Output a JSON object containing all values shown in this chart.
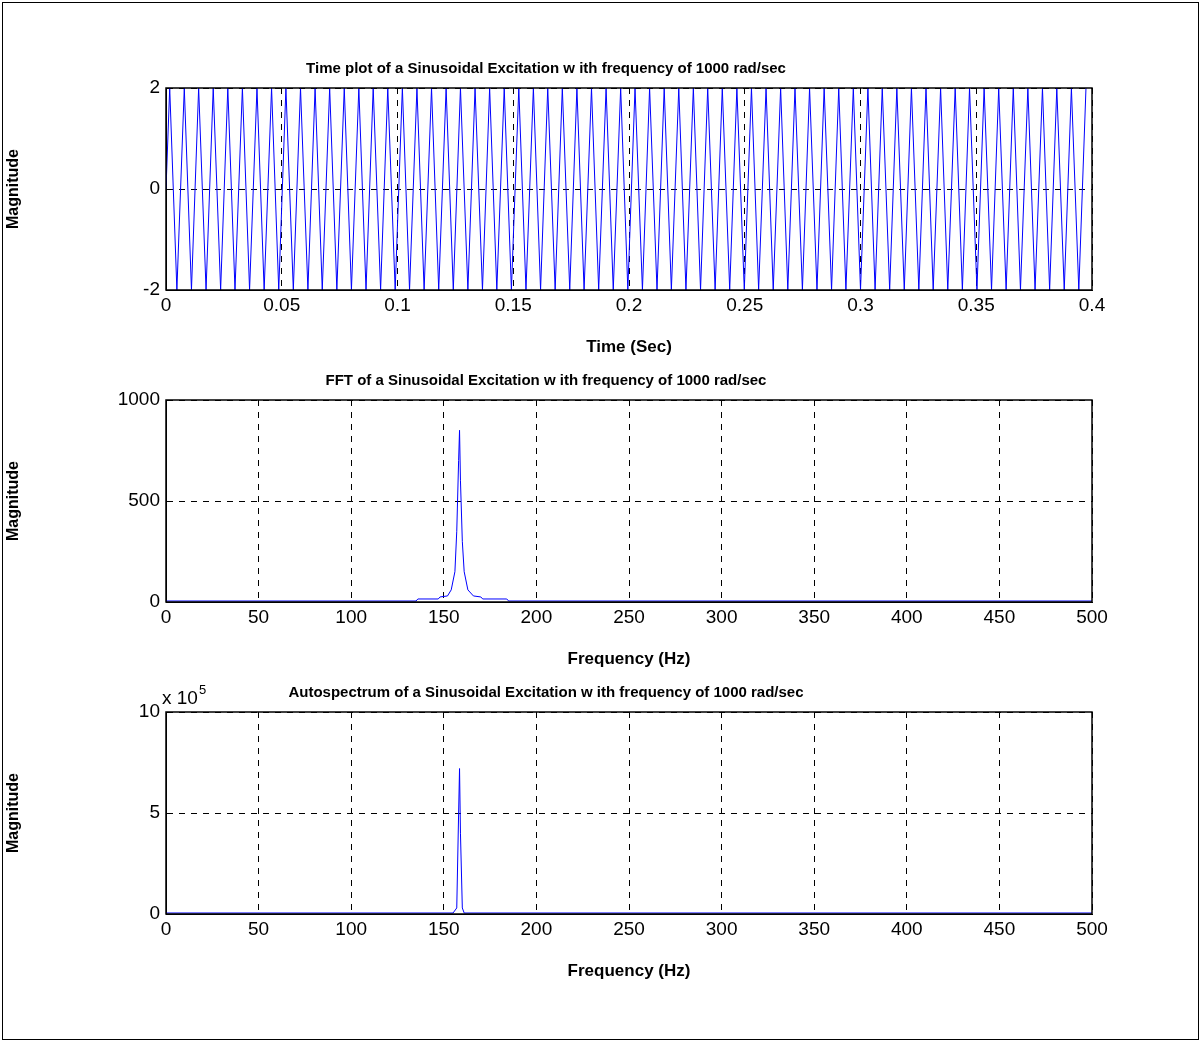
{
  "chart_data": [
    {
      "type": "line",
      "title": "Time plot of a Sinusoidal Excitation w ith frequency of 1000 rad/sec",
      "xlabel": "Time (Sec)",
      "ylabel": "Magnitude",
      "x": [
        0,
        0.0016,
        0.0047,
        0.0079,
        0.011,
        0.0141,
        0.0173,
        0.0204,
        0.0236,
        0.0267,
        0.0298,
        0.033,
        0.0361,
        0.0393,
        0.0424,
        0.0456,
        0.0487,
        0.0518,
        0.055,
        0.0581,
        0.0613,
        0.0644,
        0.0675,
        0.0707,
        0.0738,
        0.077,
        0.0801,
        0.0833,
        0.0864,
        0.0895,
        0.0927,
        0.0958,
        0.099,
        0.1021,
        0.1052,
        0.1084,
        0.1115,
        0.1147,
        0.1178,
        0.121,
        0.1241,
        0.1272,
        0.1304,
        0.1335,
        0.1367,
        0.1398,
        0.1429,
        0.1461,
        0.1492,
        0.1524,
        0.1555,
        0.1587,
        0.1618,
        0.1649,
        0.1681,
        0.1712,
        0.1744,
        0.1775,
        0.1806,
        0.1838,
        0.1869,
        0.1901,
        0.1932,
        0.1964,
        0.1995,
        0.2026,
        0.2058,
        0.2089,
        0.2121,
        0.2152,
        0.2183,
        0.2215,
        0.2246,
        0.2278,
        0.2309,
        0.234,
        0.2372,
        0.2403,
        0.2435,
        0.2466,
        0.2498,
        0.2529,
        0.256,
        0.2592,
        0.2623,
        0.2655,
        0.2686,
        0.2717,
        0.2749,
        0.278,
        0.2812,
        0.2843,
        0.2875,
        0.2906,
        0.2937,
        0.2969,
        0.3,
        0.3032,
        0.3063,
        0.3094,
        0.3126,
        0.3157,
        0.3189,
        0.322,
        0.3252,
        0.3283,
        0.3314,
        0.3346,
        0.3377,
        0.3409,
        0.344,
        0.3471,
        0.3503,
        0.3534,
        0.3566,
        0.3597,
        0.3629,
        0.366,
        0.3691,
        0.3723,
        0.3754,
        0.3786,
        0.3817,
        0.3848,
        0.388,
        0.3911,
        0.3943,
        0.3974
      ],
      "series": [
        {
          "color": "#0000ff",
          "values": [
            0,
            2,
            -2,
            2,
            -2,
            2,
            -2,
            2,
            -2,
            2,
            -2,
            2,
            -2,
            2,
            -2,
            2,
            -2,
            2,
            -2,
            2,
            -2,
            2,
            -2,
            2,
            -2,
            2,
            -2,
            2,
            -2,
            2,
            -2,
            2,
            -2,
            2,
            -2,
            2,
            -2,
            2,
            -2,
            2,
            -2,
            2,
            -2,
            2,
            -2,
            2,
            -2,
            2,
            -2,
            2,
            -2,
            2,
            -2,
            2,
            -2,
            2,
            -2,
            2,
            -2,
            2,
            -2,
            2,
            -2,
            2,
            -2,
            2,
            -2,
            2,
            -2,
            2,
            -2,
            2,
            -2,
            2,
            -2,
            2,
            -2,
            2,
            -2,
            2,
            -2,
            2,
            -2,
            2,
            -2,
            2,
            -2,
            2,
            -2,
            2,
            -2,
            2,
            -2,
            2,
            -2,
            2,
            -2,
            2,
            -2,
            2,
            -2,
            2,
            -2,
            2,
            -2,
            2,
            -2,
            2,
            -2,
            2,
            -2,
            2,
            -2,
            2,
            -2,
            2,
            -2,
            2,
            -2,
            2,
            -2,
            2,
            -2,
            2,
            -2,
            2,
            -2,
            2
          ]
        }
      ],
      "xlim": [
        0,
        0.4
      ],
      "xticks": [
        0,
        0.05,
        0.1,
        0.15,
        0.2,
        0.25,
        0.3,
        0.35,
        0.4
      ],
      "ylim": [
        -2,
        2
      ],
      "yticks": [
        -2,
        0,
        2
      ],
      "grid": true
    },
    {
      "type": "line",
      "title": "FFT of a Sinusoidal Excitation w ith frequency of 1000 rad/sec",
      "xlabel": "Frequency (Hz)",
      "ylabel": "Magnitude",
      "x": [
        0,
        135,
        136,
        147,
        148,
        152,
        154,
        156,
        157,
        158,
        158.5,
        159,
        160,
        161,
        163,
        166,
        170,
        171,
        184,
        185,
        500
      ],
      "series": [
        {
          "color": "#0000ff",
          "values": [
            5,
            5,
            15,
            15,
            25,
            30,
            60,
            150,
            350,
            700,
            850,
            600,
            300,
            150,
            60,
            30,
            25,
            15,
            15,
            5,
            5
          ]
        }
      ],
      "xlim": [
        0,
        500
      ],
      "xticks": [
        0,
        50,
        100,
        150,
        200,
        250,
        300,
        350,
        400,
        450,
        500
      ],
      "ylim": [
        0,
        1000
      ],
      "yticks": [
        0,
        500,
        1000
      ],
      "grid": true
    },
    {
      "type": "line",
      "title": "Autospectrum of a Sinusoidal Excitation w ith frequency of 1000 rad/sec",
      "xlabel": "Frequency (Hz)",
      "ylabel": "Magnitude",
      "annotations": [
        "x 10$^{5}$"
      ],
      "x": [
        0,
        155,
        157,
        158,
        158.5,
        159,
        160,
        161,
        500
      ],
      "series": [
        {
          "color": "#0000ff",
          "values": [
            0.05,
            0.05,
            0.3,
            5,
            7.2,
            4,
            0.3,
            0.05,
            0.05
          ]
        }
      ],
      "xlim": [
        0,
        500
      ],
      "xticks": [
        0,
        50,
        100,
        150,
        200,
        250,
        300,
        350,
        400,
        450,
        500
      ],
      "ylim": [
        0,
        10
      ],
      "yticks": [
        0,
        5,
        10
      ],
      "grid": true
    }
  ]
}
